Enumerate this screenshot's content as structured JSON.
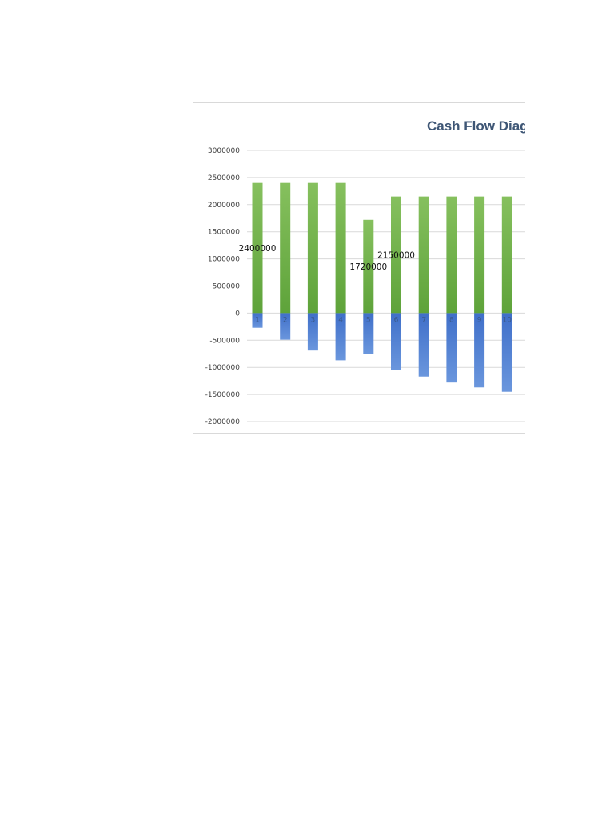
{
  "chart_data": {
    "type": "bar",
    "title": "Cash Flow Diagr",
    "xlabel": "",
    "ylabel": "",
    "categories": [
      "1",
      "2",
      "3",
      "4",
      "5",
      "6",
      "7",
      "8",
      "9",
      "10"
    ],
    "series": [
      {
        "values": [
          2400000,
          2400000,
          2400000,
          2400000,
          1720000,
          2150000,
          2150000,
          2150000,
          2150000,
          2150000
        ],
        "color": "#70ad47"
      },
      {
        "values": [
          -270000,
          -490000,
          -690000,
          -870000,
          -750000,
          -1050000,
          -1170000,
          -1280000,
          -1370000,
          -1450000
        ],
        "color": "#4472c4"
      }
    ],
    "y_ticks": [
      {
        "value": 3000000,
        "label": "3000000"
      },
      {
        "value": 2500000,
        "label": "2500000"
      },
      {
        "value": 2000000,
        "label": "2000000"
      },
      {
        "value": 1500000,
        "label": "1500000"
      },
      {
        "value": 1000000,
        "label": "1000000"
      },
      {
        "value": 500000,
        "label": "500000"
      },
      {
        "value": 0,
        "label": "0"
      },
      {
        "value": -500000,
        "label": "-500000"
      },
      {
        "value": -1000000,
        "label": "-1000000"
      },
      {
        "value": -1500000,
        "label": "-1500000"
      },
      {
        "value": -2000000,
        "label": "-2000000"
      }
    ],
    "ylim": [
      -2000000,
      3000000
    ],
    "grid": true,
    "data_labels": [
      {
        "category": "1",
        "text": "2400000"
      },
      {
        "category": "5",
        "text": "1720000"
      },
      {
        "category": "6",
        "text": "2150000"
      }
    ]
  }
}
